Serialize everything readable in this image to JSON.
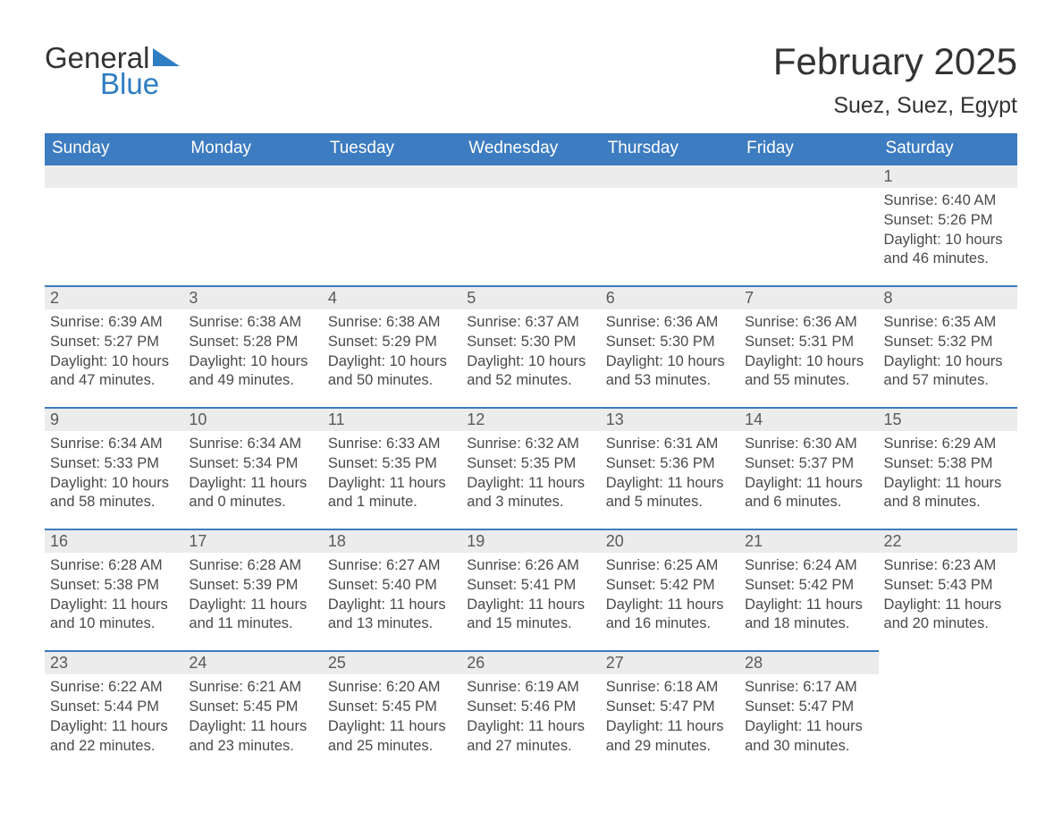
{
  "logo": {
    "text_general": "General",
    "text_blue": "Blue",
    "shape_color": "#2f7dc2"
  },
  "title": "February 2025",
  "location": "Suez, Suez, Egypt",
  "colors": {
    "header_bg": "#3d7cc0",
    "header_text": "#ffffff",
    "daynum_bg": "#ececec",
    "cell_border": "#3d7cc0",
    "body_text": "#4a4a4a",
    "title_text": "#333333"
  },
  "typography": {
    "title_fontsize": 42,
    "location_fontsize": 25,
    "weekday_fontsize": 19,
    "daynum_fontsize": 18,
    "data_fontsize": 16.5,
    "logo_fontsize": 33
  },
  "weekdays": [
    "Sunday",
    "Monday",
    "Tuesday",
    "Wednesday",
    "Thursday",
    "Friday",
    "Saturday"
  ],
  "sunrise_label": "Sunrise: ",
  "sunset_label": "Sunset: ",
  "daylight_label": "Daylight: ",
  "grid": [
    [
      {
        "blank": true
      },
      {
        "blank": true
      },
      {
        "blank": true
      },
      {
        "blank": true
      },
      {
        "blank": true
      },
      {
        "blank": true
      },
      {
        "day": "1",
        "sunrise": "6:40 AM",
        "sunset": "5:26 PM",
        "daylight1": "10 hours",
        "daylight2": "and 46 minutes."
      }
    ],
    [
      {
        "day": "2",
        "sunrise": "6:39 AM",
        "sunset": "5:27 PM",
        "daylight1": "10 hours",
        "daylight2": "and 47 minutes."
      },
      {
        "day": "3",
        "sunrise": "6:38 AM",
        "sunset": "5:28 PM",
        "daylight1": "10 hours",
        "daylight2": "and 49 minutes."
      },
      {
        "day": "4",
        "sunrise": "6:38 AM",
        "sunset": "5:29 PM",
        "daylight1": "10 hours",
        "daylight2": "and 50 minutes."
      },
      {
        "day": "5",
        "sunrise": "6:37 AM",
        "sunset": "5:30 PM",
        "daylight1": "10 hours",
        "daylight2": "and 52 minutes."
      },
      {
        "day": "6",
        "sunrise": "6:36 AM",
        "sunset": "5:30 PM",
        "daylight1": "10 hours",
        "daylight2": "and 53 minutes."
      },
      {
        "day": "7",
        "sunrise": "6:36 AM",
        "sunset": "5:31 PM",
        "daylight1": "10 hours",
        "daylight2": "and 55 minutes."
      },
      {
        "day": "8",
        "sunrise": "6:35 AM",
        "sunset": "5:32 PM",
        "daylight1": "10 hours",
        "daylight2": "and 57 minutes."
      }
    ],
    [
      {
        "day": "9",
        "sunrise": "6:34 AM",
        "sunset": "5:33 PM",
        "daylight1": "10 hours",
        "daylight2": "and 58 minutes."
      },
      {
        "day": "10",
        "sunrise": "6:34 AM",
        "sunset": "5:34 PM",
        "daylight1": "11 hours",
        "daylight2": "and 0 minutes."
      },
      {
        "day": "11",
        "sunrise": "6:33 AM",
        "sunset": "5:35 PM",
        "daylight1": "11 hours",
        "daylight2": "and 1 minute."
      },
      {
        "day": "12",
        "sunrise": "6:32 AM",
        "sunset": "5:35 PM",
        "daylight1": "11 hours",
        "daylight2": "and 3 minutes."
      },
      {
        "day": "13",
        "sunrise": "6:31 AM",
        "sunset": "5:36 PM",
        "daylight1": "11 hours",
        "daylight2": "and 5 minutes."
      },
      {
        "day": "14",
        "sunrise": "6:30 AM",
        "sunset": "5:37 PM",
        "daylight1": "11 hours",
        "daylight2": "and 6 minutes."
      },
      {
        "day": "15",
        "sunrise": "6:29 AM",
        "sunset": "5:38 PM",
        "daylight1": "11 hours",
        "daylight2": "and 8 minutes."
      }
    ],
    [
      {
        "day": "16",
        "sunrise": "6:28 AM",
        "sunset": "5:38 PM",
        "daylight1": "11 hours",
        "daylight2": "and 10 minutes."
      },
      {
        "day": "17",
        "sunrise": "6:28 AM",
        "sunset": "5:39 PM",
        "daylight1": "11 hours",
        "daylight2": "and 11 minutes."
      },
      {
        "day": "18",
        "sunrise": "6:27 AM",
        "sunset": "5:40 PM",
        "daylight1": "11 hours",
        "daylight2": "and 13 minutes."
      },
      {
        "day": "19",
        "sunrise": "6:26 AM",
        "sunset": "5:41 PM",
        "daylight1": "11 hours",
        "daylight2": "and 15 minutes."
      },
      {
        "day": "20",
        "sunrise": "6:25 AM",
        "sunset": "5:42 PM",
        "daylight1": "11 hours",
        "daylight2": "and 16 minutes."
      },
      {
        "day": "21",
        "sunrise": "6:24 AM",
        "sunset": "5:42 PM",
        "daylight1": "11 hours",
        "daylight2": "and 18 minutes."
      },
      {
        "day": "22",
        "sunrise": "6:23 AM",
        "sunset": "5:43 PM",
        "daylight1": "11 hours",
        "daylight2": "and 20 minutes."
      }
    ],
    [
      {
        "day": "23",
        "sunrise": "6:22 AM",
        "sunset": "5:44 PM",
        "daylight1": "11 hours",
        "daylight2": "and 22 minutes."
      },
      {
        "day": "24",
        "sunrise": "6:21 AM",
        "sunset": "5:45 PM",
        "daylight1": "11 hours",
        "daylight2": "and 23 minutes."
      },
      {
        "day": "25",
        "sunrise": "6:20 AM",
        "sunset": "5:45 PM",
        "daylight1": "11 hours",
        "daylight2": "and 25 minutes."
      },
      {
        "day": "26",
        "sunrise": "6:19 AM",
        "sunset": "5:46 PM",
        "daylight1": "11 hours",
        "daylight2": "and 27 minutes."
      },
      {
        "day": "27",
        "sunrise": "6:18 AM",
        "sunset": "5:47 PM",
        "daylight1": "11 hours",
        "daylight2": "and 29 minutes."
      },
      {
        "day": "28",
        "sunrise": "6:17 AM",
        "sunset": "5:47 PM",
        "daylight1": "11 hours",
        "daylight2": "and 30 minutes."
      },
      {
        "trailing": true
      }
    ]
  ]
}
